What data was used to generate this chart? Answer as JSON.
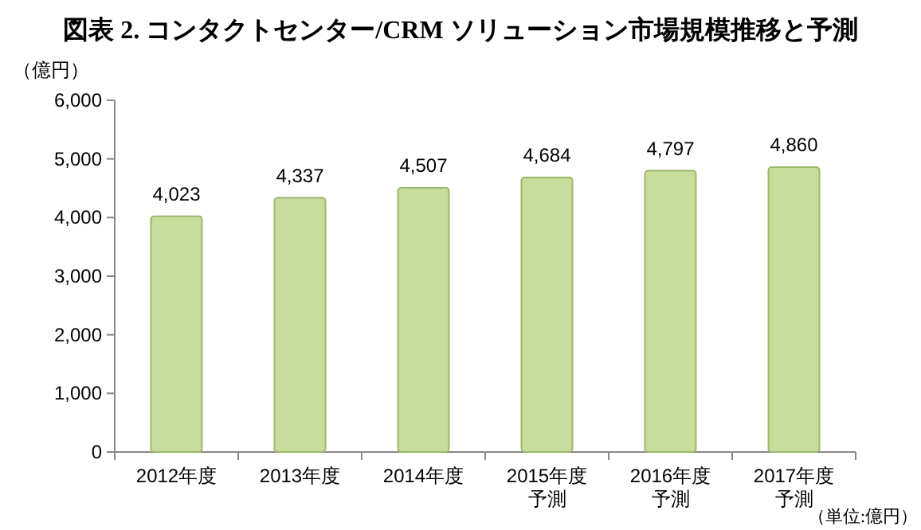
{
  "chart_data": {
    "type": "bar",
    "title": "図表 2.  コンタクトセンター/CRM ソリューション市場規模推移と予測",
    "ylabel": "（億円）",
    "categories": [
      "2012年度",
      "2013年度",
      "2014年度",
      "2015年度予測",
      "2016年度予測",
      "2017年度予測"
    ],
    "values": [
      4023,
      4337,
      4507,
      4684,
      4797,
      4860
    ],
    "value_labels": [
      "4,023",
      "4,337",
      "4,507",
      "4,684",
      "4,797",
      "4,860"
    ],
    "color": "#c8dc9c",
    "ylim": [
      0,
      6000
    ],
    "yticks": [
      {
        "value": 0,
        "label": "0"
      },
      {
        "value": 1000,
        "label": "1,000"
      },
      {
        "value": 2000,
        "label": "2,000"
      },
      {
        "value": 3000,
        "label": "3,000"
      },
      {
        "value": 4000,
        "label": "4,000"
      },
      {
        "value": 5000,
        "label": "5,000"
      },
      {
        "value": 6000,
        "label": "6,000"
      }
    ],
    "annotations": [
      "（単位:億円）"
    ]
  }
}
